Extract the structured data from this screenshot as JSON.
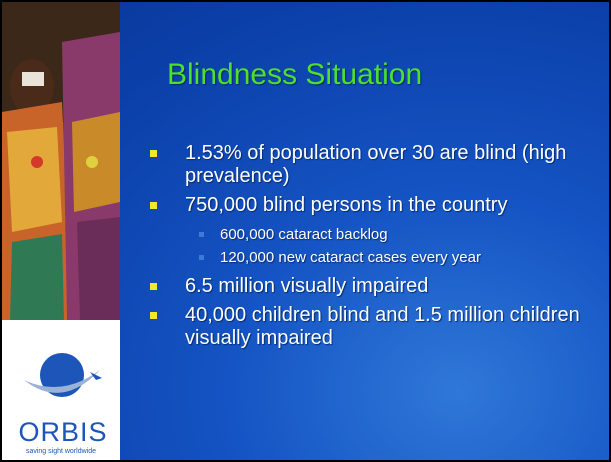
{
  "slide": {
    "title": "Blindness Situation",
    "bullets": [
      {
        "text": "1.53% of population over 30 are blind (high prevalence)"
      },
      {
        "text": "750,000 blind persons in the country",
        "sub": [
          "600,000 cataract backlog",
          "120,000 new cataract cases every year"
        ]
      },
      {
        "text": "6.5 million visually impaired"
      },
      {
        "text": "40,000 children blind and 1.5 million children visually impaired"
      }
    ],
    "logo": {
      "name": "ORBIS",
      "tagline": "saving sight worldwide"
    }
  }
}
